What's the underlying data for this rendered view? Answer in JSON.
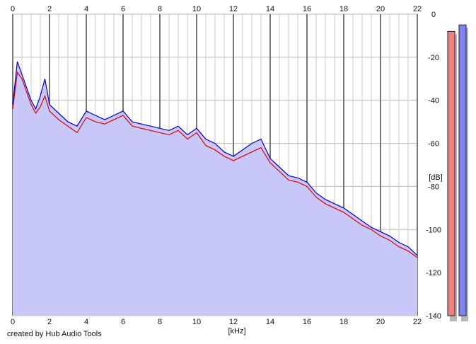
{
  "credit": "created by Hub Audio Tools",
  "chart_data": {
    "type": "line",
    "xlabel": "[kHz]",
    "ylabel": "[dB]",
    "xlim": [
      0,
      22
    ],
    "ylim": [
      -140,
      0
    ],
    "x_ticks": [
      0,
      2,
      4,
      6,
      8,
      10,
      12,
      14,
      16,
      18,
      20,
      22
    ],
    "y_ticks": [
      0,
      -20,
      -40,
      -60,
      -80,
      -100,
      -120,
      -140
    ],
    "grid": true,
    "fill_color": "#c8c8f8",
    "series": [
      {
        "color": "#e00000",
        "x": [
          0,
          0.25,
          0.5,
          0.75,
          1,
          1.25,
          1.5,
          1.75,
          2,
          2.5,
          3,
          3.5,
          4,
          4.5,
          5,
          5.5,
          6,
          6.5,
          7,
          7.5,
          8,
          8.5,
          9,
          9.5,
          10,
          10.5,
          11,
          11.5,
          12,
          12.5,
          13,
          13.5,
          14,
          14.5,
          15,
          15.5,
          16,
          16.5,
          17,
          17.5,
          18,
          18.5,
          19,
          19.5,
          20,
          20.5,
          21,
          21.5,
          22
        ],
        "values": [
          -44,
          -27,
          -30,
          -36,
          -42,
          -46,
          -43,
          -38,
          -45,
          -49,
          -52,
          -55,
          -48,
          -50,
          -51,
          -49,
          -47,
          -52,
          -53,
          -54,
          -55,
          -56,
          -54,
          -58,
          -55,
          -61,
          -63,
          -66,
          -68,
          -66,
          -64,
          -62,
          -69,
          -73,
          -77,
          -78,
          -80,
          -85,
          -88,
          -90,
          -92,
          -95,
          -98,
          -100,
          -103,
          -105,
          -108,
          -110,
          -113
        ]
      },
      {
        "color": "#0000cc",
        "x": [
          0,
          0.25,
          0.5,
          0.75,
          1,
          1.25,
          1.5,
          1.75,
          2,
          2.5,
          3,
          3.5,
          4,
          4.5,
          5,
          5.5,
          6,
          6.5,
          7,
          7.5,
          8,
          8.5,
          9,
          9.5,
          10,
          10.5,
          11,
          11.5,
          12,
          12.5,
          13,
          13.5,
          14,
          14.5,
          15,
          15.5,
          16,
          16.5,
          17,
          17.5,
          18,
          18.5,
          19,
          19.5,
          20,
          20.5,
          21,
          21.5,
          22
        ],
        "values": [
          -42,
          -22,
          -28,
          -34,
          -40,
          -44,
          -38,
          -30,
          -42,
          -46,
          -50,
          -52,
          -45,
          -47,
          -49,
          -47,
          -45,
          -50,
          -51,
          -52,
          -53,
          -54,
          -52,
          -56,
          -53,
          -58,
          -60,
          -64,
          -66,
          -63,
          -60,
          -58,
          -67,
          -71,
          -75,
          -76,
          -78,
          -83,
          -86,
          -88,
          -90,
          -93,
          -96,
          -99,
          -101,
          -103,
          -106,
          -108,
          -112
        ]
      }
    ],
    "level_meters": [
      {
        "color": "#f08080",
        "level_db": -8
      },
      {
        "color": "#8080f0",
        "level_db": -5
      }
    ]
  }
}
